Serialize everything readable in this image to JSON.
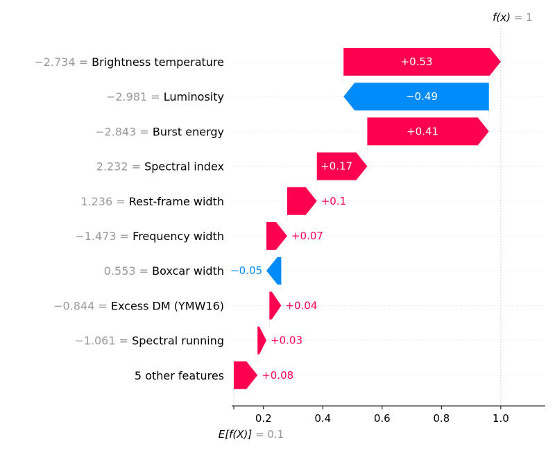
{
  "chart_data": {
    "type": "waterfall",
    "fx_label": "f(x)",
    "fx_value": "1",
    "ef_label": "E[f(X)]",
    "ef_value": "0.1",
    "base_value": 0.1,
    "final_value": 1.0,
    "xlim": [
      0.093,
      1.15
    ],
    "x_ticks": [
      0.2,
      0.4,
      0.6,
      0.8,
      1.0
    ],
    "x_tick_labels": [
      "0.2",
      "0.4",
      "0.6",
      "0.8",
      "1.0"
    ],
    "colors": {
      "positive": "#ff0051",
      "negative": "#008bfb",
      "value_gray": "#999999"
    },
    "features": [
      {
        "value_text": "−2.734",
        "name": "Brightness temperature",
        "contribution": 0.53,
        "label": "+0.53",
        "start": 0.47,
        "end": 1.0
      },
      {
        "value_text": "−2.981",
        "name": "Luminosity",
        "contribution": -0.49,
        "label": "−0.49",
        "start": 0.96,
        "end": 0.47
      },
      {
        "value_text": "−2.843",
        "name": "Burst energy",
        "contribution": 0.41,
        "label": "+0.41",
        "start": 0.55,
        "end": 0.96
      },
      {
        "value_text": "2.232",
        "name": "Spectral index",
        "contribution": 0.17,
        "label": "+0.17",
        "start": 0.38,
        "end": 0.55
      },
      {
        "value_text": "1.236",
        "name": "Rest-frame width",
        "contribution": 0.1,
        "label": "+0.1",
        "start": 0.28,
        "end": 0.38
      },
      {
        "value_text": "−1.473",
        "name": "Frequency width",
        "contribution": 0.07,
        "label": "+0.07",
        "start": 0.21,
        "end": 0.28
      },
      {
        "value_text": "0.553",
        "name": "Boxcar width",
        "contribution": -0.05,
        "label": "−0.05",
        "start": 0.26,
        "end": 0.21
      },
      {
        "value_text": "−0.844",
        "name": "Excess DM (YMW16)",
        "contribution": 0.04,
        "label": "+0.04",
        "start": 0.22,
        "end": 0.26
      },
      {
        "value_text": "−1.061",
        "name": "Spectral running",
        "contribution": 0.03,
        "label": "+0.03",
        "start": 0.18,
        "end": 0.21
      },
      {
        "value_text": "",
        "name": "5 other features",
        "contribution": 0.08,
        "label": "+0.08",
        "start": 0.1,
        "end": 0.18
      }
    ]
  }
}
